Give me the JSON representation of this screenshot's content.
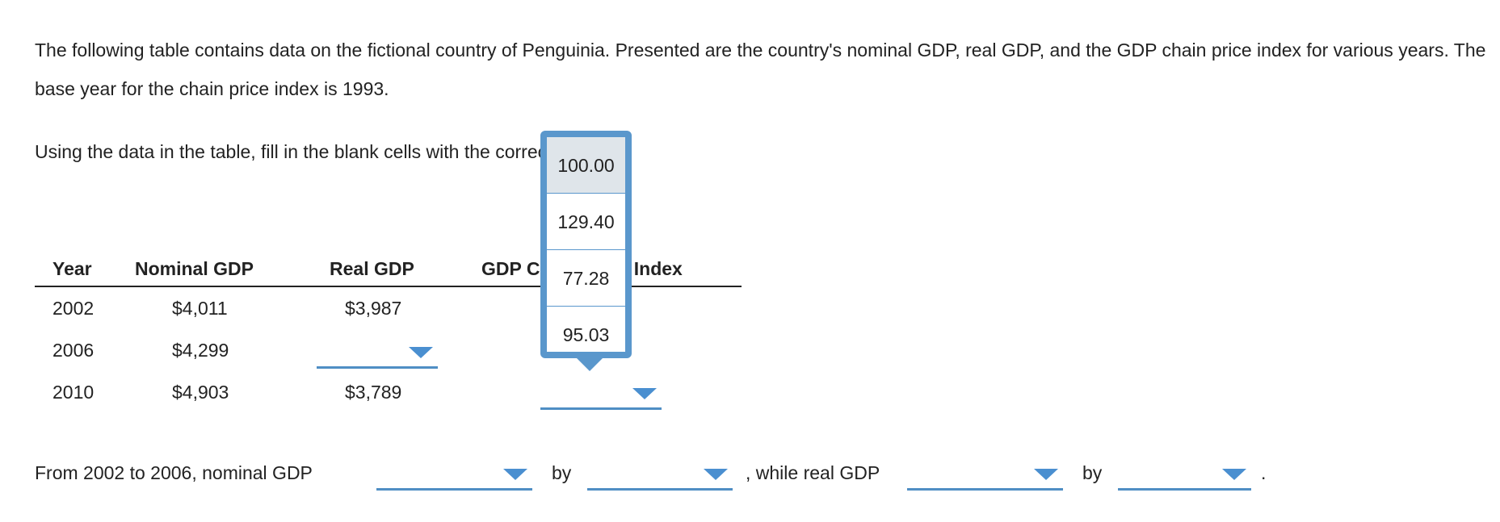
{
  "intro_text": "The following table contains data on the fictional country of Penguinia. Presented are the country's nominal GDP, real GDP, and the GDP chain price index for various years. The base year for the chain price index is 1993.",
  "instruction_text": "Using the data in the table, fill in the blank cells with the correct values.",
  "table": {
    "headers": [
      "Year",
      "Nominal GDP",
      "Real GDP",
      "GDP Chain Price Index"
    ],
    "rows": [
      {
        "year": "2002",
        "nominal": "$4,011",
        "real": "$3,987",
        "index": ""
      },
      {
        "year": "2006",
        "nominal": "$4,299",
        "real": "",
        "index": ""
      },
      {
        "year": "2010",
        "nominal": "$4,903",
        "real": "$3,789",
        "index": ""
      }
    ]
  },
  "dropdown_options": [
    "100.00",
    "129.40",
    "77.28",
    "95.03"
  ],
  "hovered_option": "100.00",
  "sentence": {
    "part1": "From 2002 to 2006, nominal GDP",
    "part2": "by",
    "part3": ", while real GDP",
    "part4": "by",
    "part5": "."
  },
  "colors": {
    "accent": "#4f8ec4",
    "arrow": "#4a8fd0",
    "popup_border": "#5a97cc",
    "hover_bg": "#dfe5ea"
  }
}
